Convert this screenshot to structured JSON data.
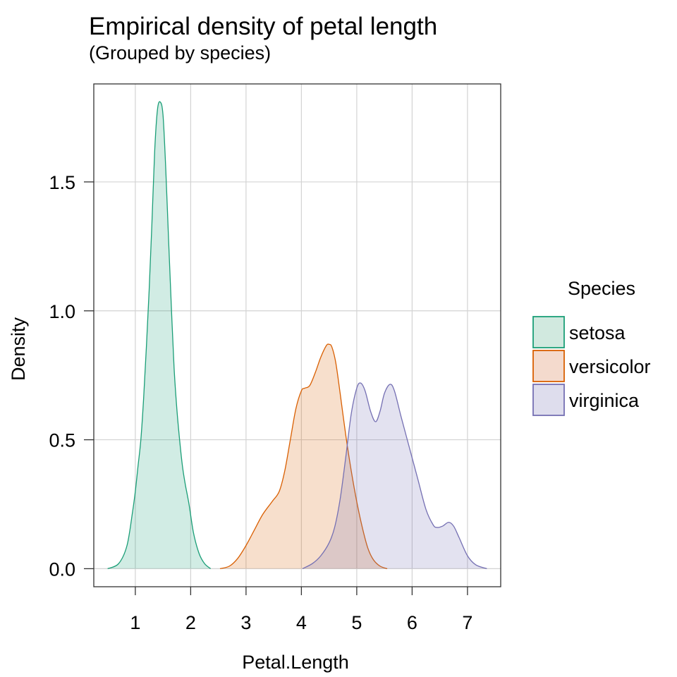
{
  "chart_data": {
    "type": "area",
    "title": "Empirical density of petal length",
    "subtitle": "(Grouped by species)",
    "xlabel": "Petal.Length",
    "ylabel": "Density",
    "xlim": [
      0.25,
      7.6
    ],
    "ylim": [
      -0.07,
      1.88
    ],
    "xticks": [
      1,
      2,
      3,
      4,
      5,
      6,
      7
    ],
    "xtick_labels": [
      "1",
      "2",
      "3",
      "4",
      "5",
      "6",
      "7"
    ],
    "yticks": [
      0.0,
      0.5,
      1.0,
      1.5
    ],
    "ytick_labels": [
      "0.0",
      "0.5",
      "1.0",
      "1.5"
    ],
    "grid": true,
    "legend": {
      "title": "Species",
      "position": "right"
    },
    "series": [
      {
        "name": "setosa",
        "line_color": "#1b9e77",
        "fill_color": "#d1e9df",
        "x": [
          0.5,
          0.7,
          0.85,
          0.95,
          1.0,
          1.05,
          1.1,
          1.15,
          1.2,
          1.25,
          1.3,
          1.35,
          1.4,
          1.45,
          1.5,
          1.55,
          1.6,
          1.65,
          1.7,
          1.75,
          1.8,
          1.85,
          1.9,
          1.97,
          2.05,
          2.15,
          2.25,
          2.36
        ],
        "y": [
          0.0,
          0.02,
          0.09,
          0.22,
          0.3,
          0.4,
          0.5,
          0.66,
          0.86,
          1.08,
          1.34,
          1.62,
          1.78,
          1.81,
          1.76,
          1.55,
          1.28,
          1.02,
          0.78,
          0.62,
          0.5,
          0.4,
          0.33,
          0.25,
          0.14,
          0.06,
          0.02,
          0.0
        ]
      },
      {
        "name": "versicolor",
        "line_color": "#d95f02",
        "fill_color": "#f4dacd",
        "x": [
          2.53,
          2.7,
          2.85,
          3.0,
          3.15,
          3.3,
          3.47,
          3.6,
          3.7,
          3.8,
          3.9,
          4.0,
          4.06,
          4.15,
          4.25,
          4.35,
          4.45,
          4.5,
          4.55,
          4.62,
          4.7,
          4.8,
          4.9,
          5.0,
          5.1,
          5.2,
          5.3,
          5.42,
          5.55
        ],
        "y": [
          0.0,
          0.01,
          0.04,
          0.09,
          0.15,
          0.21,
          0.26,
          0.3,
          0.38,
          0.5,
          0.62,
          0.69,
          0.7,
          0.71,
          0.76,
          0.82,
          0.865,
          0.87,
          0.86,
          0.8,
          0.68,
          0.52,
          0.38,
          0.26,
          0.16,
          0.08,
          0.035,
          0.01,
          0.0
        ]
      },
      {
        "name": "virginica",
        "line_color": "#7570b3",
        "fill_color": "#dedded",
        "x": [
          4.02,
          4.2,
          4.35,
          4.5,
          4.6,
          4.7,
          4.8,
          4.9,
          5.0,
          5.07,
          5.15,
          5.25,
          5.34,
          5.42,
          5.5,
          5.6,
          5.68,
          5.8,
          5.95,
          6.1,
          6.25,
          6.38,
          6.45,
          6.55,
          6.66,
          6.75,
          6.85,
          7.0,
          7.15,
          7.35
        ],
        "y": [
          0.0,
          0.02,
          0.05,
          0.1,
          0.16,
          0.27,
          0.43,
          0.6,
          0.7,
          0.72,
          0.69,
          0.61,
          0.57,
          0.61,
          0.68,
          0.715,
          0.69,
          0.59,
          0.47,
          0.35,
          0.23,
          0.17,
          0.16,
          0.165,
          0.18,
          0.165,
          0.12,
          0.05,
          0.015,
          0.0
        ]
      }
    ]
  }
}
